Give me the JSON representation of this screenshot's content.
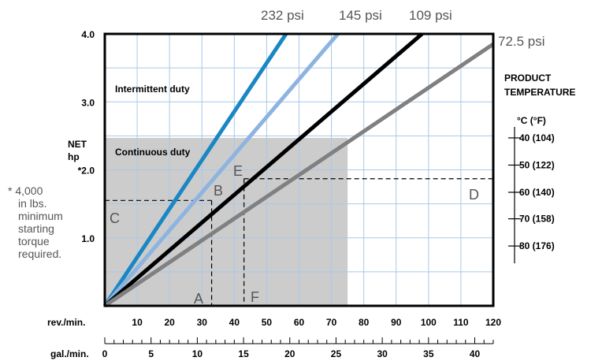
{
  "chart_data": {
    "type": "line",
    "x_axis_primary": {
      "label": "rev./min.",
      "range": [
        0,
        120
      ],
      "ticks": [
        10,
        20,
        30,
        40,
        50,
        60,
        70,
        80,
        90,
        100,
        110,
        120
      ]
    },
    "x_axis_secondary": {
      "label": "gal./min.",
      "range": [
        0,
        42
      ],
      "ticks": [
        0,
        5,
        10,
        15,
        20,
        25,
        30,
        35,
        40
      ]
    },
    "y_axis": {
      "label_line1": "NET",
      "label_line2": "hp",
      "range": [
        0,
        4.0
      ],
      "tick_labels": [
        "1.0",
        "*2.0",
        "3.0",
        "4.0"
      ],
      "tick_values": [
        1.0,
        2.0,
        3.0,
        4.0
      ]
    },
    "series": [
      {
        "name": "232 psi",
        "color": "#1a87c4",
        "x": [
          0,
          56
        ],
        "y": [
          0,
          4.0
        ]
      },
      {
        "name": "145 psi",
        "color": "#8db4e0",
        "x": [
          0,
          72
        ],
        "y": [
          0,
          4.0
        ]
      },
      {
        "name": "109 psi",
        "color": "#000000",
        "x": [
          0,
          98
        ],
        "y": [
          0,
          4.0
        ]
      },
      {
        "name": "72.5 psi",
        "color": "#808080",
        "x": [
          0,
          120
        ],
        "y": [
          0,
          3.85
        ]
      }
    ],
    "regions": [
      {
        "name": "Continuous duty",
        "x": [
          0,
          75
        ],
        "y": [
          0,
          2.47
        ],
        "color": "#cccccc"
      },
      {
        "name": "Intermittent duty"
      }
    ],
    "reference_lines": [
      {
        "label_start": "C",
        "label_end": "B",
        "y": 1.55,
        "x_end": 33
      },
      {
        "label_start": "A",
        "x": 33,
        "y_end": 1.55
      },
      {
        "label_start": "E",
        "label_end": "D",
        "y": 1.87,
        "x_start": 43
      },
      {
        "label_start": "F",
        "x": 43,
        "y_end": 1.87
      }
    ],
    "product_temperature": {
      "title_line1": "PRODUCT",
      "title_line2": "TEMPERATURE",
      "unit_header": "°C  (°F)",
      "levels": [
        {
          "label": "40 (104)",
          "y": 2.47
        },
        {
          "label": "50 (122)",
          "y": 2.07
        },
        {
          "label": "60 (140)",
          "y": 1.67
        },
        {
          "label": "70 (158)",
          "y": 1.28
        },
        {
          "label": "80 (176)",
          "y": 0.88
        }
      ]
    },
    "footnote": [
      "* 4,000",
      "in lbs.",
      "minimum",
      "starting",
      "torque",
      "required."
    ]
  }
}
